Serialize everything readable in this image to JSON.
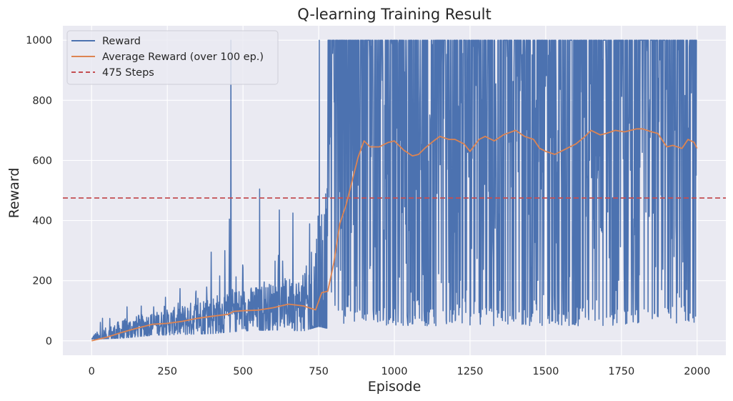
{
  "chart_data": {
    "type": "line",
    "title": "Q-learning Training Result",
    "xlabel": "Episode",
    "ylabel": "Reward",
    "xlim": [
      -95,
      2095
    ],
    "ylim": [
      -48,
      1048
    ],
    "xticks": [
      0,
      250,
      500,
      750,
      1000,
      1250,
      1500,
      1750,
      2000
    ],
    "yticks": [
      0,
      200,
      400,
      600,
      800,
      1000
    ],
    "grid": true,
    "legend_position": "top-left",
    "colors": {
      "reward": "#4c72b0",
      "average": "#dd8452",
      "threshold": "#c44e52",
      "plot_background": "#eaeaf2",
      "grid": "#ffffff"
    },
    "legend": [
      {
        "label": "Reward",
        "style": "solid",
        "color": "#4c72b0"
      },
      {
        "label": "Average Reward (over 100 ep.)",
        "style": "solid",
        "color": "#dd8452"
      },
      {
        "label": "475 Steps",
        "style": "dashed",
        "color": "#c44e52"
      }
    ],
    "threshold": {
      "name": "475 Steps",
      "y": 475
    },
    "series": [
      {
        "name": "Reward",
        "description": "Per-episode reward for episodes 0–1999; noisy, rising from ~10–70 early to oscillating between ~50 and 1000 after episode ~780",
        "envelope": [
          {
            "x": 0,
            "low": 10,
            "high": 70
          },
          {
            "x": 100,
            "low": 15,
            "high": 130
          },
          {
            "x": 200,
            "low": 30,
            "high": 135
          },
          {
            "x": 300,
            "low": 35,
            "high": 180
          },
          {
            "x": 400,
            "low": 40,
            "high": 230
          },
          {
            "x": 500,
            "low": 55,
            "high": 260
          },
          {
            "x": 600,
            "low": 60,
            "high": 290
          },
          {
            "x": 700,
            "low": 55,
            "high": 300
          },
          {
            "x": 750,
            "low": 80,
            "high": 1000
          },
          {
            "x": 800,
            "low": 60,
            "high": 1000
          },
          {
            "x": 1000,
            "low": 50,
            "high": 1000
          },
          {
            "x": 1250,
            "low": 50,
            "high": 1000
          },
          {
            "x": 1500,
            "low": 50,
            "high": 1000
          },
          {
            "x": 1750,
            "low": 50,
            "high": 1000
          },
          {
            "x": 2000,
            "low": 60,
            "high": 1000
          }
        ],
        "spikes": [
          {
            "x": 460,
            "y": 1000
          },
          {
            "x": 455,
            "y": 405
          },
          {
            "x": 555,
            "y": 505
          },
          {
            "x": 440,
            "y": 300
          },
          {
            "x": 395,
            "y": 295
          },
          {
            "x": 620,
            "y": 435
          },
          {
            "x": 665,
            "y": 425
          },
          {
            "x": 748,
            "y": 415
          },
          {
            "x": 752,
            "y": 1000
          }
        ]
      },
      {
        "name": "Average Reward (over 100 ep.)",
        "x": [
          0,
          50,
          100,
          150,
          200,
          250,
          300,
          350,
          400,
          450,
          470,
          500,
          550,
          600,
          650,
          700,
          740,
          760,
          780,
          800,
          820,
          840,
          860,
          880,
          900,
          920,
          950,
          980,
          1000,
          1030,
          1060,
          1080,
          1100,
          1130,
          1150,
          1180,
          1200,
          1230,
          1250,
          1280,
          1300,
          1330,
          1360,
          1400,
          1430,
          1460,
          1480,
          1500,
          1530,
          1560,
          1600,
          1630,
          1650,
          1680,
          1700,
          1730,
          1760,
          1800,
          1820,
          1850,
          1870,
          1890,
          1900,
          1920,
          1950,
          1970,
          1990,
          2000
        ],
        "y": [
          0,
          12,
          28,
          42,
          55,
          58,
          65,
          75,
          82,
          88,
          98,
          100,
          102,
          110,
          122,
          116,
          103,
          160,
          165,
          260,
          390,
          450,
          530,
          610,
          665,
          645,
          645,
          660,
          665,
          635,
          615,
          620,
          640,
          665,
          680,
          670,
          670,
          655,
          630,
          670,
          680,
          665,
          685,
          700,
          680,
          670,
          640,
          630,
          620,
          635,
          655,
          680,
          700,
          685,
          690,
          700,
          695,
          705,
          705,
          695,
          690,
          660,
          645,
          650,
          640,
          670,
          660,
          640
        ]
      }
    ]
  }
}
